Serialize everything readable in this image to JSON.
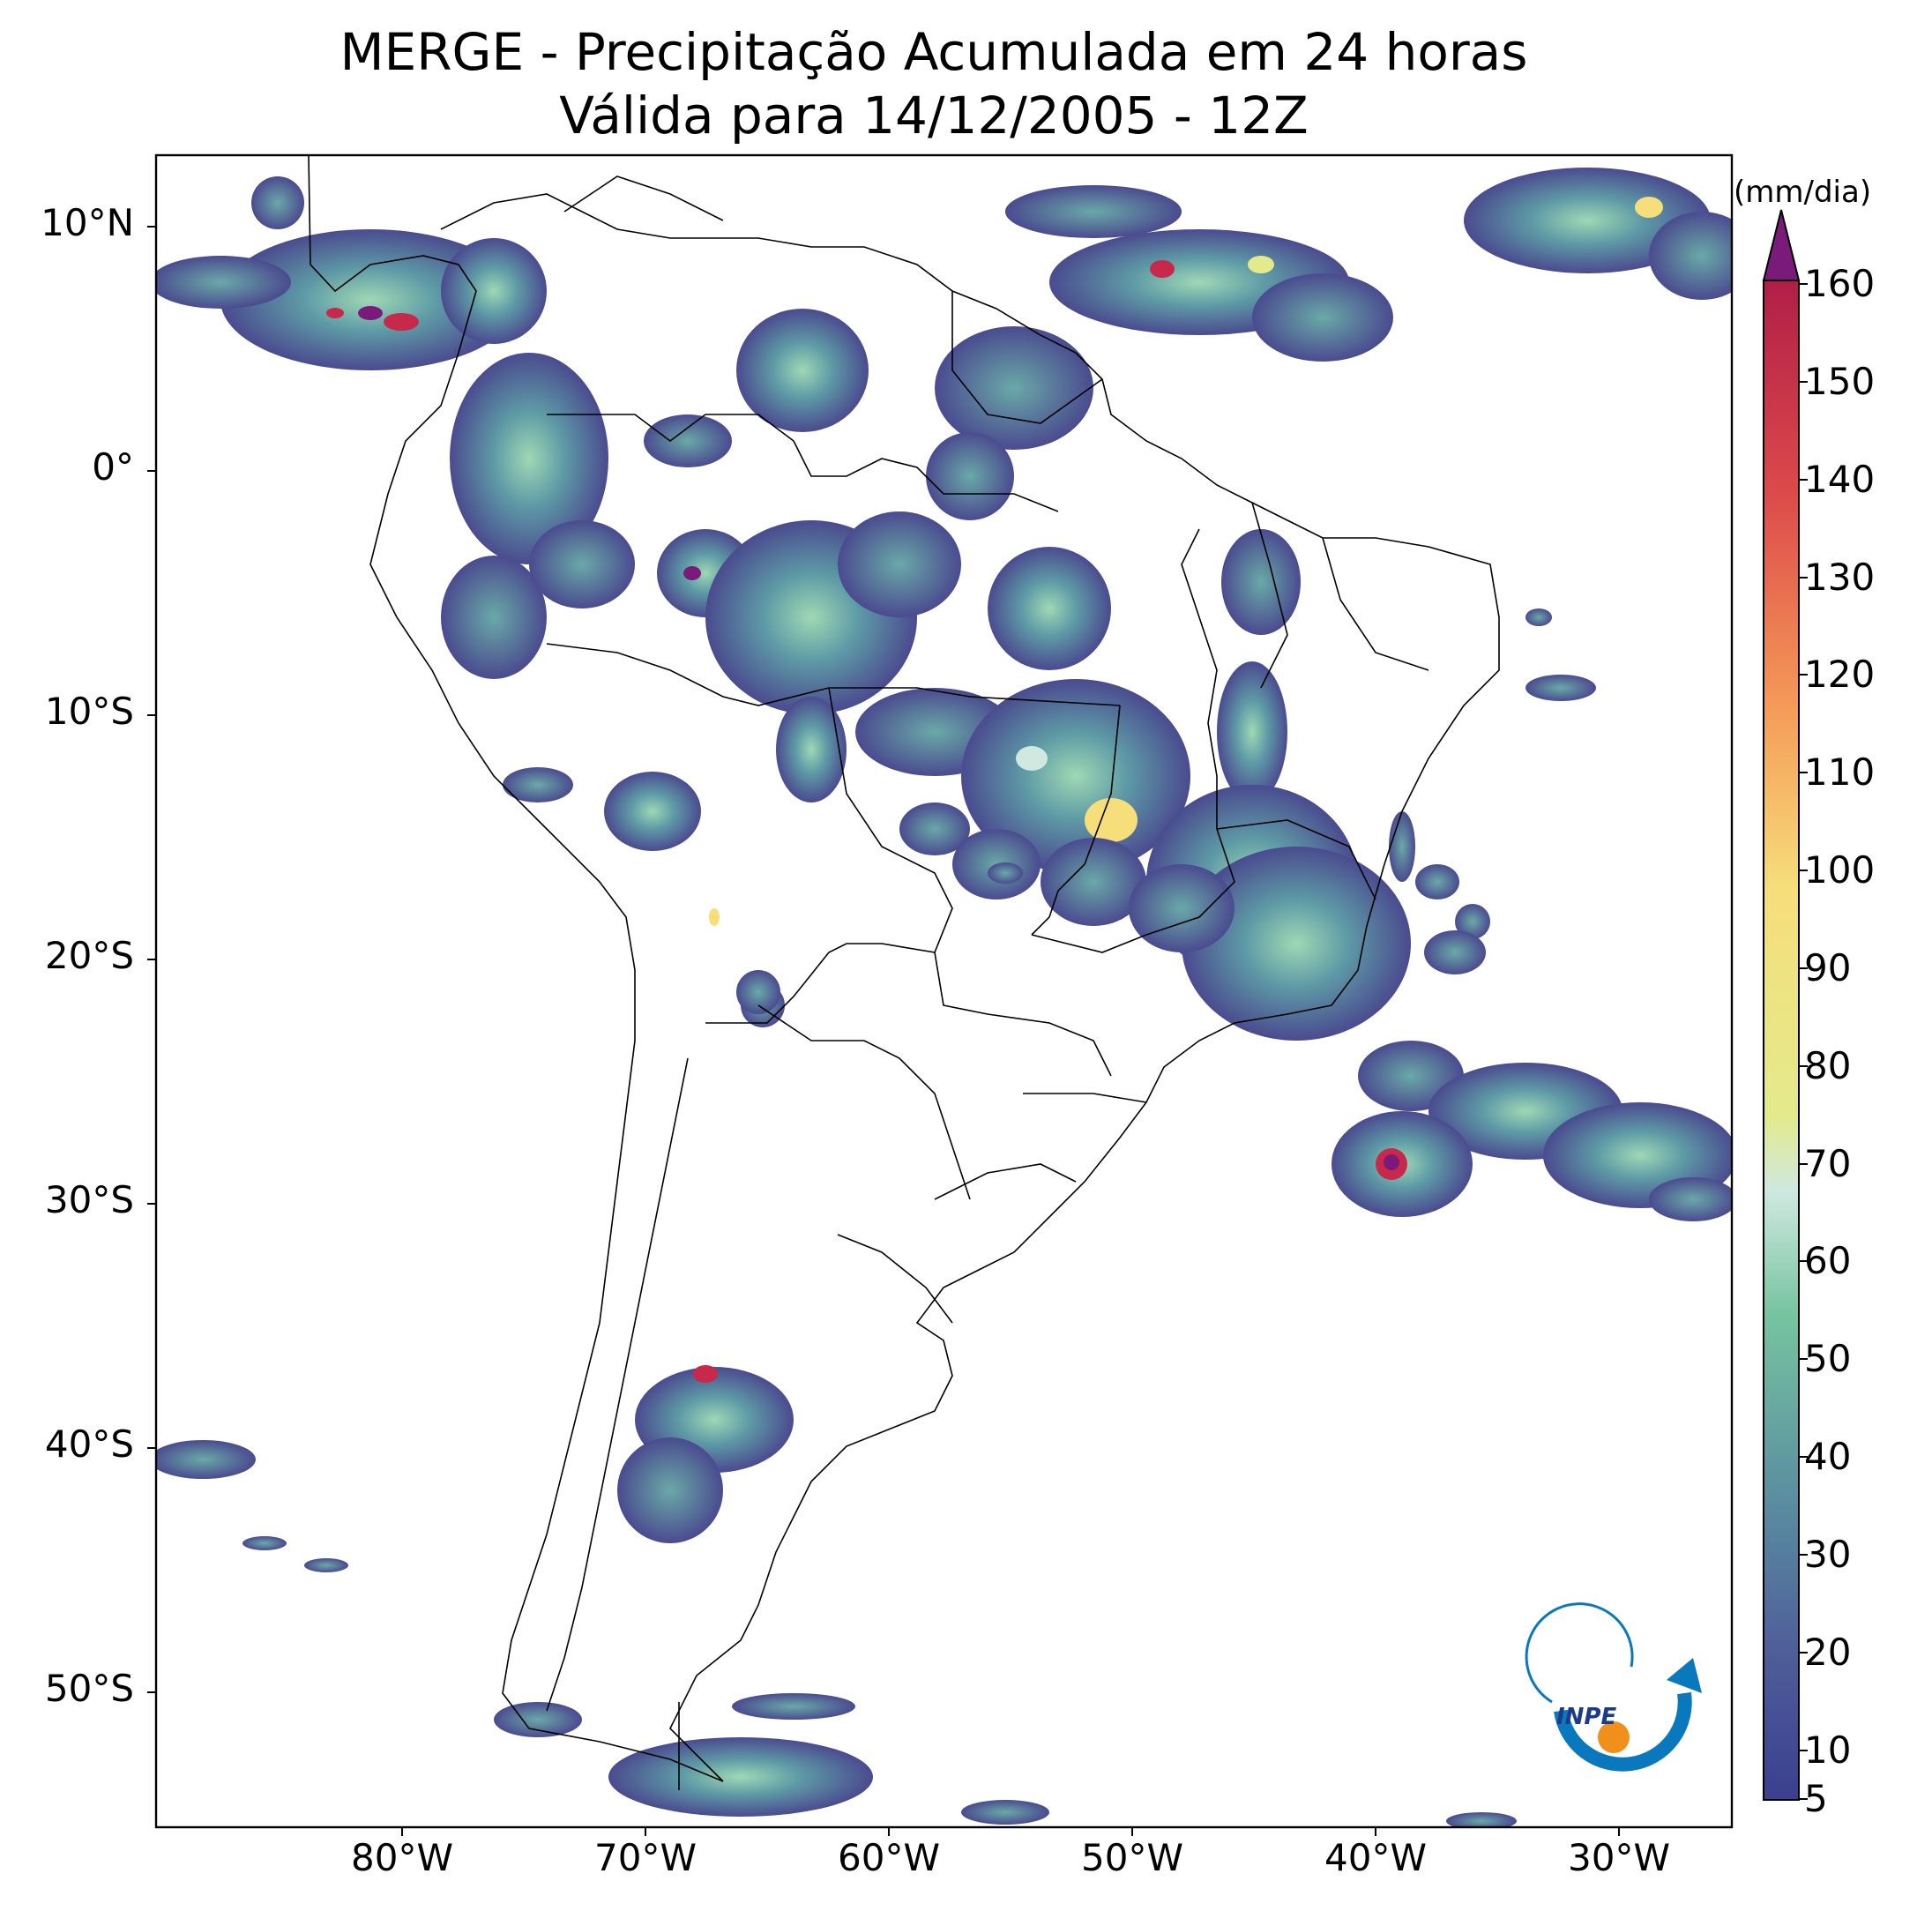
{
  "title": {
    "line1": "MERGE - Precipitação Acumulada em 24 horas",
    "line2": "Válida para 14/12/2005 - 12Z"
  },
  "map": {
    "lat_labels": [
      "10°N",
      "0°",
      "10°S",
      "20°S",
      "30°S",
      "40°S",
      "50°S"
    ],
    "lon_labels": [
      "80°W",
      "70°W",
      "60°W",
      "50°W",
      "40°W",
      "30°W"
    ]
  },
  "colorbar": {
    "unit": "(mm/dia)",
    "labels": [
      "160",
      "150",
      "140",
      "130",
      "120",
      "110",
      "100",
      "90",
      "80",
      "70",
      "60",
      "50",
      "40",
      "30",
      "20",
      "10",
      "5"
    ],
    "colors": {
      "low": "#4a4b8f",
      "mid_low": "#5a8fa0",
      "mid": "#76c4a0",
      "light": "#cfe8e0",
      "yellow": "#f6de7a",
      "orange": "#f59a58",
      "red": "#c8284a",
      "max": "#7a1a7a"
    }
  },
  "logo": {
    "text": "INPE"
  }
}
